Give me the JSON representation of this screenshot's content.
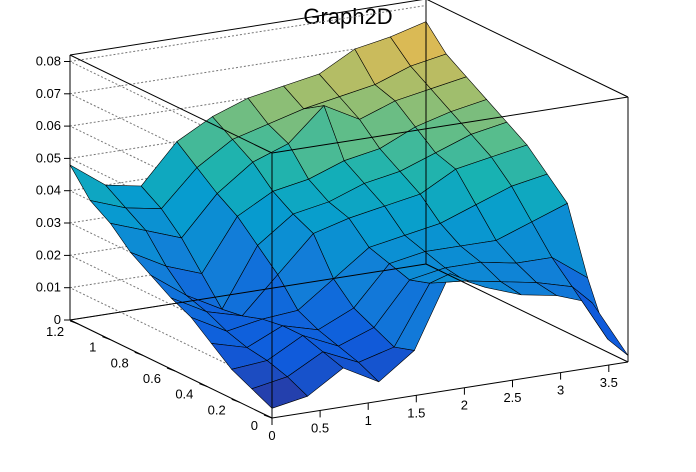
{
  "chart_data": {
    "type": "surface",
    "title": "Graph2D",
    "xlabel": "",
    "ylabel": "",
    "zlabel": "",
    "xlim": [
      0,
      3.7
    ],
    "ylim": [
      0,
      1.25
    ],
    "zlim": [
      0,
      0.082
    ],
    "grid": true,
    "colormap": "viridis-like (blue → green → yellow)",
    "x_ticks": [
      0,
      0.5,
      1,
      1.5,
      2,
      2.5,
      3,
      3.5
    ],
    "x_tick_labels": [
      "0",
      "0.5",
      "1",
      "1.5",
      "2",
      "2.5",
      "3",
      "3.5"
    ],
    "y_ticks": [
      0,
      0.2,
      0.4,
      0.6,
      0.8,
      1,
      1.2
    ],
    "y_tick_labels": [
      "0",
      "0.2",
      "0.4",
      "0.6",
      "0.8",
      "1",
      "1.2"
    ],
    "z_ticks": [
      0,
      0.01,
      0.02,
      0.03,
      0.04,
      0.05,
      0.06,
      0.07,
      0.08
    ],
    "z_tick_labels": [
      "0",
      "0.01",
      "0.02",
      "0.03",
      "0.04",
      "0.05",
      "0.06",
      "0.07",
      "0.08"
    ],
    "x": [
      0,
      0.37,
      0.74,
      1.11,
      1.48,
      1.85,
      2.22,
      2.59,
      2.96,
      3.33,
      3.7
    ],
    "y": [
      0,
      0.125,
      0.25,
      0.375,
      0.5,
      0.625,
      0.75,
      0.875,
      1.0,
      1.125,
      1.25
    ],
    "z": [
      [
        0.003,
        0.005,
        0.012,
        0.006,
        0.014,
        0.036,
        0.03,
        0.026,
        0.024,
        0.02,
        0.002
      ],
      [
        0.006,
        0.008,
        0.014,
        0.009,
        0.012,
        0.03,
        0.029,
        0.027,
        0.025,
        0.022,
        0.004
      ],
      [
        0.009,
        0.01,
        0.016,
        0.011,
        0.015,
        0.028,
        0.03,
        0.03,
        0.028,
        0.028,
        0.02
      ],
      [
        0.014,
        0.011,
        0.016,
        0.013,
        0.018,
        0.03,
        0.032,
        0.032,
        0.032,
        0.036,
        0.04
      ],
      [
        0.019,
        0.013,
        0.015,
        0.016,
        0.024,
        0.032,
        0.034,
        0.036,
        0.04,
        0.044,
        0.046
      ],
      [
        0.022,
        0.016,
        0.013,
        0.024,
        0.035,
        0.038,
        0.04,
        0.042,
        0.048,
        0.05,
        0.052
      ],
      [
        0.026,
        0.018,
        0.012,
        0.03,
        0.038,
        0.04,
        0.044,
        0.046,
        0.05,
        0.054,
        0.056
      ],
      [
        0.03,
        0.024,
        0.02,
        0.036,
        0.042,
        0.044,
        0.048,
        0.05,
        0.055,
        0.058,
        0.06
      ],
      [
        0.036,
        0.032,
        0.028,
        0.04,
        0.048,
        0.052,
        0.062,
        0.056,
        0.06,
        0.062,
        0.064
      ],
      [
        0.04,
        0.036,
        0.034,
        0.045,
        0.052,
        0.055,
        0.058,
        0.06,
        0.062,
        0.066,
        0.068
      ],
      [
        0.048,
        0.04,
        0.038,
        0.05,
        0.056,
        0.06,
        0.062,
        0.064,
        0.07,
        0.072,
        0.075
      ]
    ]
  }
}
